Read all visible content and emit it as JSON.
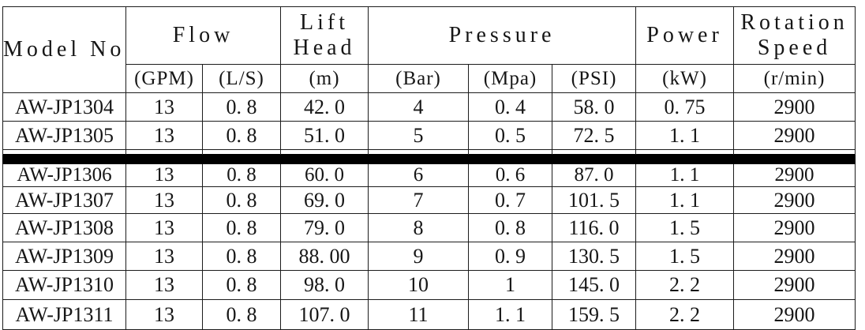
{
  "colors": {
    "background": "#ffffff",
    "text": "#161616",
    "grid_border": "#1c1c1c",
    "page_break_bar": "#000000"
  },
  "table": {
    "header": {
      "model_no": "Model No.",
      "flow": "Flow",
      "lift_head_line1": "Lift",
      "lift_head_line2": "Head",
      "pressure": "Pressure",
      "power": "Power",
      "rotation_line1": "Rotation",
      "rotation_line2": "Speed",
      "units": {
        "gpm": "(GPM)",
        "ls": "(L/S)",
        "m": "(m)",
        "bar": "(Bar)",
        "mpa": "(Mpa)",
        "psi": "(PSI)",
        "kw": "(kW)",
        "rmin": "(r/min)"
      }
    },
    "rows": [
      [
        "AW-JP1304",
        "13",
        "0. 8",
        "42. 0",
        "4",
        "0. 4",
        "58. 0",
        "0. 75",
        "2900"
      ],
      [
        "AW-JP1305",
        "13",
        "0. 8",
        "51. 0",
        "5",
        "0. 5",
        "72. 5",
        "1. 1",
        "2900"
      ],
      [
        "AW-JP1306",
        "13",
        "0. 8",
        "60. 0",
        "6",
        "0. 6",
        "87. 0",
        "1. 1",
        "2900"
      ],
      [
        "AW-JP1307",
        "13",
        "0. 8",
        "69. 0",
        "7",
        "0. 7",
        "101. 5",
        "1. 1",
        "2900"
      ],
      [
        "AW-JP1308",
        "13",
        "0. 8",
        "79. 0",
        "8",
        "0. 8",
        "116. 0",
        "1. 5",
        "2900"
      ],
      [
        "AW-JP1309",
        "13",
        "0. 8",
        "88. 00",
        "9",
        "0. 9",
        "130. 5",
        "1. 5",
        "2900"
      ],
      [
        "AW-JP1310",
        "13",
        "0. 8",
        "98. 0",
        "10",
        "1",
        "145. 0",
        "2. 2",
        "2900"
      ],
      [
        "AW-JP1311",
        "13",
        "0. 8",
        "107. 0",
        "11",
        "1. 1",
        "159. 5",
        "2. 2",
        "2900"
      ]
    ]
  }
}
